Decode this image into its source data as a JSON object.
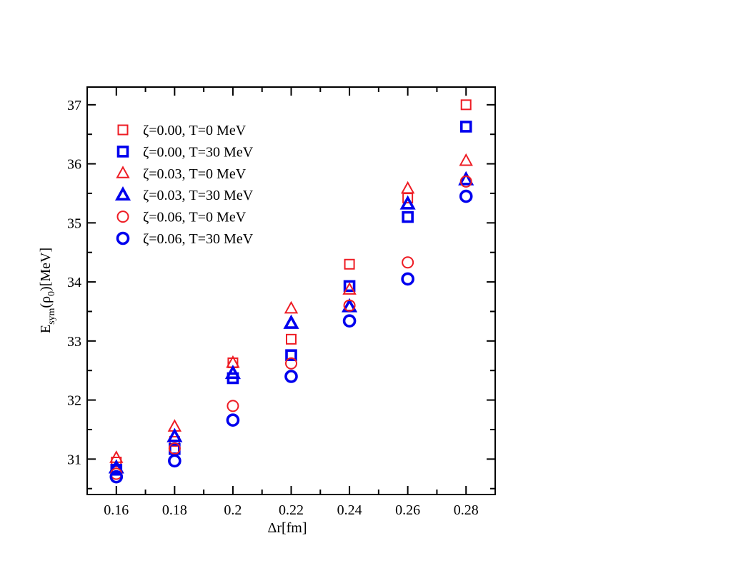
{
  "chart_data": {
    "type": "scatter",
    "xlabel_prefix": "Δr",
    "xlabel_unit": "[fm]",
    "ylabel_main": "E",
    "ylabel_sub": "sym",
    "ylabel_arg_open": "(ρ",
    "ylabel_arg_sub": "0",
    "ylabel_arg_close": ")[MeV]",
    "xlim": [
      0.15,
      0.29
    ],
    "ylim": [
      30.4,
      37.3
    ],
    "x_ticks": [
      0.16,
      0.18,
      0.2,
      0.22,
      0.24,
      0.26,
      0.28
    ],
    "x_tick_labels": [
      "0.16",
      "0.18",
      "0.2",
      "0.22",
      "0.24",
      "0.26",
      "0.28"
    ],
    "y_ticks": [
      31,
      32,
      33,
      34,
      35,
      36,
      37
    ],
    "y_tick_labels": [
      "31",
      "32",
      "33",
      "34",
      "35",
      "36",
      "37"
    ],
    "legend_position": "top-left",
    "grid": false,
    "series": [
      {
        "name": "ζ=0.00, T=0 MeV",
        "marker": "square",
        "color": "#ee1c24",
        "bold": false,
        "x": [
          0.16,
          0.18,
          0.2,
          0.22,
          0.24,
          0.26,
          0.28
        ],
        "y": [
          30.95,
          31.3,
          32.63,
          33.03,
          34.3,
          35.42,
          37.0
        ]
      },
      {
        "name": "ζ=0.00, T=30 MeV",
        "marker": "square",
        "color": "#0000ee",
        "bold": true,
        "x": [
          0.16,
          0.18,
          0.2,
          0.22,
          0.24,
          0.26,
          0.28
        ],
        "y": [
          30.82,
          31.17,
          32.37,
          32.76,
          33.93,
          35.1,
          36.63
        ]
      },
      {
        "name": "ζ=0.03, T=0 MeV",
        "marker": "triangle",
        "color": "#ee1c24",
        "bold": false,
        "x": [
          0.16,
          0.18,
          0.2,
          0.22,
          0.24,
          0.26,
          0.28
        ],
        "y": [
          31.02,
          31.55,
          32.63,
          33.55,
          33.87,
          35.58,
          36.05
        ]
      },
      {
        "name": "ζ=0.03, T=30 MeV",
        "marker": "triangle",
        "color": "#0000ee",
        "bold": true,
        "x": [
          0.16,
          0.18,
          0.2,
          0.22,
          0.24,
          0.26,
          0.28
        ],
        "y": [
          30.85,
          31.38,
          32.45,
          33.3,
          33.58,
          35.32,
          35.73
        ]
      },
      {
        "name": "ζ=0.06, T=0 MeV",
        "marker": "circle",
        "color": "#ee1c24",
        "bold": false,
        "x": [
          0.16,
          0.18,
          0.2,
          0.22,
          0.24,
          0.26,
          0.28
        ],
        "y": [
          30.75,
          31.18,
          31.9,
          32.62,
          33.6,
          34.33,
          35.7
        ]
      },
      {
        "name": "ζ=0.06, T=30 MeV",
        "marker": "circle",
        "color": "#0000ee",
        "bold": true,
        "x": [
          0.16,
          0.18,
          0.2,
          0.22,
          0.24,
          0.26,
          0.28
        ],
        "y": [
          30.7,
          30.97,
          31.66,
          32.4,
          33.34,
          34.05,
          35.45
        ]
      }
    ]
  }
}
